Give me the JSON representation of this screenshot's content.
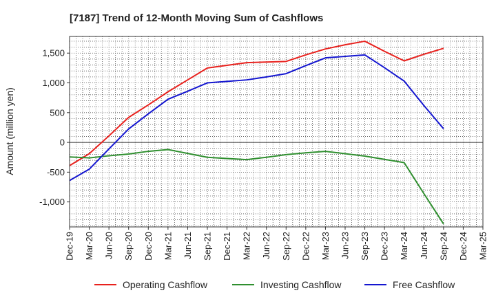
{
  "chart_data": {
    "type": "line",
    "title": "[7187]  Trend of 12-Month Moving Sum of Cashflows",
    "xlabel": "",
    "ylabel": "Amount (million yen)",
    "categories": [
      "Dec-19",
      "Mar-20",
      "Jun-20",
      "Sep-20",
      "Dec-20",
      "Mar-21",
      "Jun-21",
      "Sep-21",
      "Dec-21",
      "Mar-22",
      "Jun-22",
      "Sep-22",
      "Dec-22",
      "Mar-23",
      "Jun-23",
      "Sep-23",
      "Dec-23",
      "Mar-24",
      "Jun-24",
      "Sep-24",
      "Dec-24",
      "Mar-25"
    ],
    "ylim": [
      -1420,
      1780
    ],
    "yticks": [
      -1000,
      -500,
      0,
      500,
      1000,
      1500
    ],
    "ytick_labels": [
      "-1,000",
      "-500",
      "0",
      "500",
      "1,000",
      "1,500"
    ],
    "grid": true,
    "legend_position": "bottom",
    "series": [
      {
        "name": "Operating Cashflow",
        "color": "#e8211d",
        "values": [
          -390,
          -190,
          110,
          420,
          630,
          850,
          1050,
          1250,
          1295,
          1340,
          1350,
          1360,
          1470,
          1570,
          1640,
          1700,
          1530,
          1370,
          1480,
          1580,
          null,
          null
        ]
      },
      {
        "name": "Investing Cashflow",
        "color": "#2f8f2f",
        "values": [
          -245,
          -260,
          -225,
          -195,
          -150,
          -120,
          -185,
          -250,
          -270,
          -290,
          -250,
          -205,
          -175,
          -150,
          -190,
          -230,
          -285,
          -340,
          -860,
          -1370,
          null,
          null
        ]
      },
      {
        "name": "Free Cashflow",
        "color": "#1416d0",
        "values": [
          -640,
          -450,
          -110,
          225,
          480,
          725,
          860,
          1000,
          1025,
          1050,
          1100,
          1155,
          1290,
          1420,
          1445,
          1470,
          1255,
          1030,
          620,
          230,
          null,
          null
        ]
      }
    ]
  }
}
